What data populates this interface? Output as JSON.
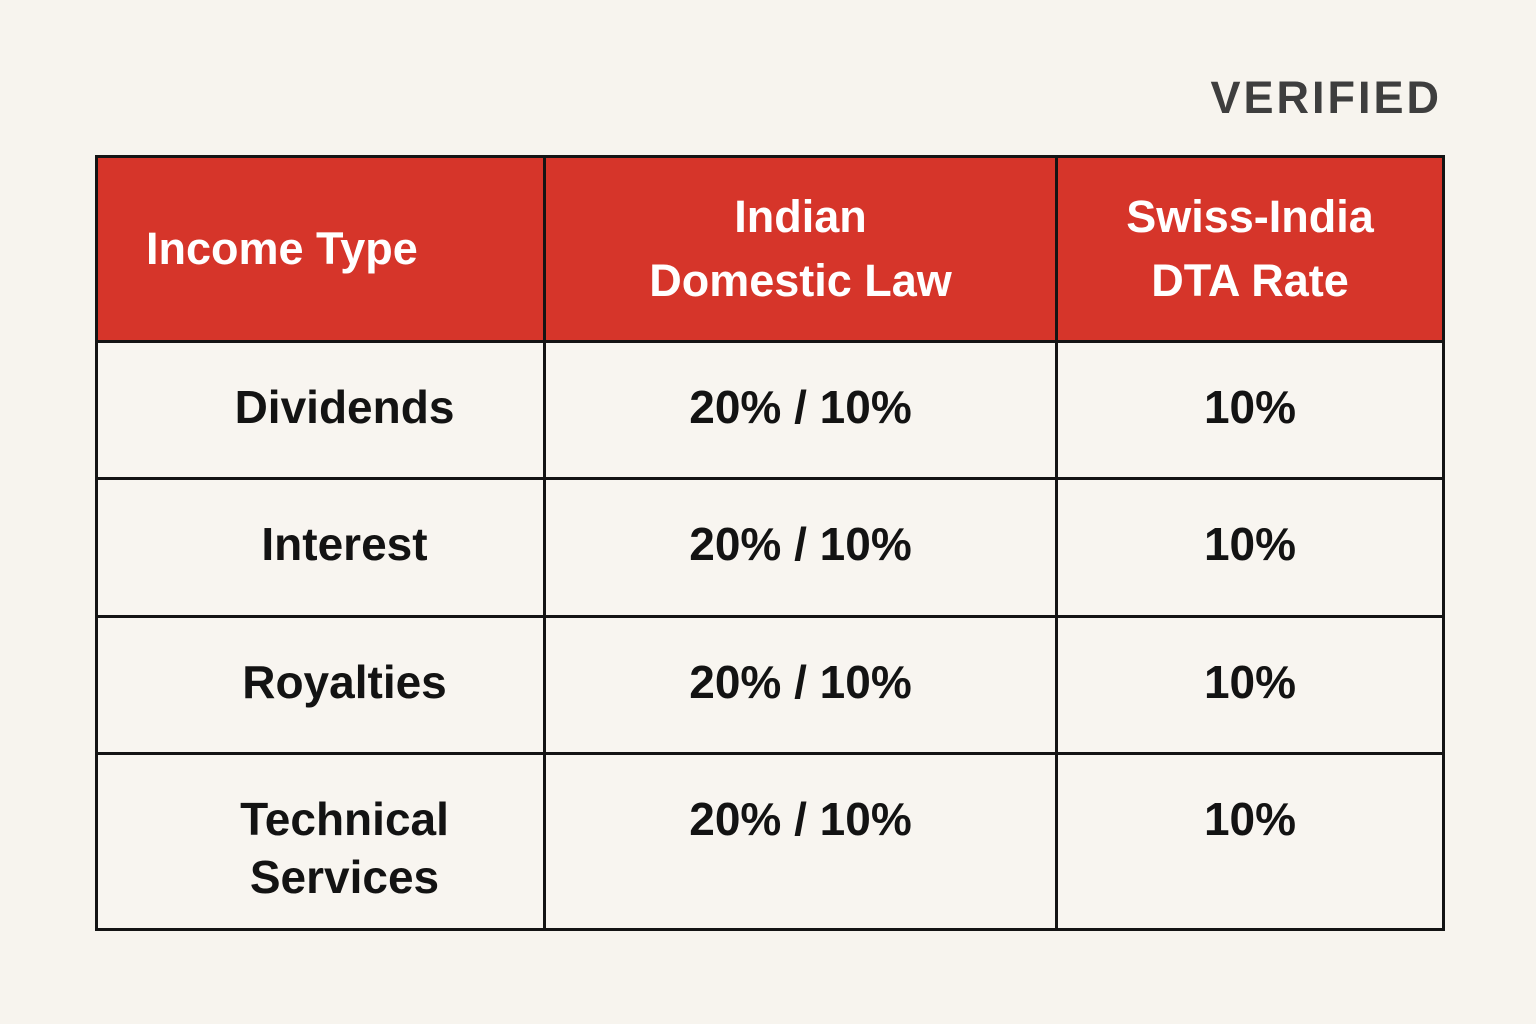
{
  "page": {
    "background_color": "#f7f4ee",
    "verified_label": "VERIFIED",
    "verified_color": "#3e3e3e"
  },
  "table": {
    "header_bg_color": "#d6352a",
    "header_text_color": "#ffffff",
    "border_color": "#141414",
    "headers": {
      "income_type": "Income Type",
      "indian_domestic_law": "Indian\nDomestic Law",
      "swiss_india_dta_rate": "Swiss-India\nDTA Rate"
    },
    "rows": [
      {
        "income_type": "Dividends",
        "indian_domestic_law": "20% / 10%",
        "swiss_india_dta_rate": "10%"
      },
      {
        "income_type": "Interest",
        "indian_domestic_law": "20% / 10%",
        "swiss_india_dta_rate": "10%"
      },
      {
        "income_type": "Royalties",
        "indian_domestic_law": "20% / 10%",
        "swiss_india_dta_rate": "10%"
      },
      {
        "income_type": "Technical\nServices",
        "indian_domestic_law": "20% / 10%",
        "swiss_india_dta_rate": "10%"
      }
    ]
  },
  "chart_data": {
    "type": "table",
    "title": "",
    "columns": [
      "Income Type",
      "Indian Domestic Law",
      "Swiss-India DTA Rate"
    ],
    "rows": [
      [
        "Dividends",
        "20% / 10%",
        "10%"
      ],
      [
        "Interest",
        "20% / 10%",
        "10%"
      ],
      [
        "Royalties",
        "20% / 10%",
        "10%"
      ],
      [
        "Technical Services",
        "20% / 10%",
        "10%"
      ]
    ],
    "annotations": [
      "VERIFIED"
    ]
  }
}
